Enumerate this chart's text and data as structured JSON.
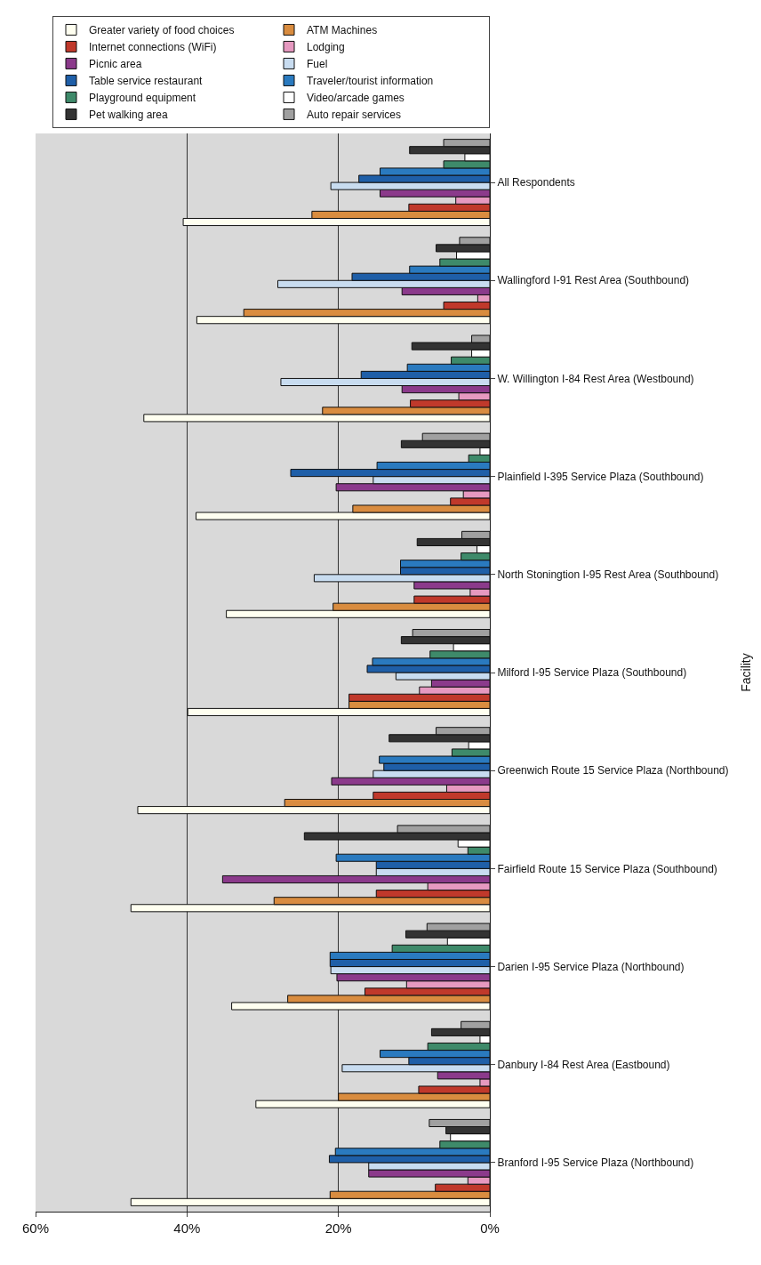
{
  "chart_data": {
    "type": "bar",
    "orientation": "horizontal",
    "ylabel": "Facility",
    "categories": [
      "All Respondents",
      "Wallingford I-91 Rest Area (Southbound)",
      "W. Willington I-84 Rest Area (Westbound)",
      "Plainfield I-395 Service Plaza (Southbound)",
      "North Stoningtion I-95 Rest Area (Southbound)",
      "Milford I-95 Service Plaza (Southbound)",
      "Greenwich Route 15 Service Plaza (Northbound)",
      "Fairfield Route 15 Service Plaza (Southbound)",
      "Darien I-95 Service Plaza (Northbound)",
      "Danbury I-84 Rest Area (Eastbound)",
      "Branford I-95 Service Plaza (Northbound)"
    ],
    "series": [
      {
        "name": "Greater variety of food choices",
        "color": "#fffff0",
        "values": [
          40.5,
          38.7,
          45.7,
          38.8,
          34.8,
          39.9,
          46.5,
          47.4,
          34.1,
          30.9,
          47.4
        ]
      },
      {
        "name": "ATM Machines",
        "color": "#d98c3f",
        "values": [
          23.5,
          32.5,
          22.1,
          18.1,
          20.7,
          18.6,
          27.1,
          28.5,
          26.7,
          20.0,
          21.1
        ]
      },
      {
        "name": "Internet connections (WiFi)",
        "color": "#c0392b",
        "values": [
          10.7,
          6.1,
          10.5,
          5.2,
          10.0,
          18.6,
          15.4,
          15.0,
          16.5,
          9.4,
          7.2
        ]
      },
      {
        "name": "Lodging",
        "color": "#e699c0",
        "values": [
          4.5,
          1.6,
          4.1,
          3.5,
          2.6,
          9.3,
          5.7,
          8.2,
          11.0,
          1.3,
          2.9
        ]
      },
      {
        "name": "Picnic area",
        "color": "#8b3a8b",
        "values": [
          14.5,
          11.6,
          11.6,
          20.3,
          10.0,
          7.7,
          20.9,
          35.3,
          20.2,
          6.9,
          16.0
        ]
      },
      {
        "name": "Fuel",
        "color": "#c8dcf0",
        "values": [
          21.0,
          28.0,
          27.6,
          15.4,
          23.2,
          12.4,
          15.4,
          15.0,
          21.0,
          19.5,
          16.0
        ]
      },
      {
        "name": "Table service restaurant",
        "color": "#1f5fa8",
        "values": [
          17.3,
          18.2,
          17.0,
          26.3,
          11.8,
          16.2,
          14.0,
          15.0,
          21.1,
          10.7,
          21.2
        ]
      },
      {
        "name": "Traveler/tourist information",
        "color": "#2a7abf",
        "values": [
          14.5,
          10.6,
          10.9,
          14.9,
          11.8,
          15.5,
          14.6,
          20.3,
          21.1,
          14.5,
          20.4
        ]
      },
      {
        "name": "Playground equipment",
        "color": "#3e8a6a",
        "values": [
          6.1,
          6.6,
          5.1,
          2.8,
          3.8,
          7.9,
          5.0,
          2.9,
          12.9,
          8.2,
          6.6
        ]
      },
      {
        "name": "Video/arcade games",
        "color": "#ffffff",
        "values": [
          3.3,
          4.4,
          2.4,
          1.3,
          1.7,
          4.8,
          2.8,
          4.2,
          5.6,
          1.3,
          5.2
        ]
      },
      {
        "name": "Pet walking area",
        "color": "#333333",
        "values": [
          10.6,
          7.1,
          10.3,
          11.7,
          9.6,
          11.7,
          13.3,
          24.5,
          11.1,
          7.7,
          5.8
        ]
      },
      {
        "name": "Auto repair services",
        "color": "#a0a0a0",
        "values": [
          6.1,
          4.0,
          2.4,
          8.9,
          3.7,
          10.2,
          7.1,
          12.2,
          8.3,
          3.8,
          8.0
        ]
      }
    ],
    "xlim": [
      60,
      0
    ],
    "xticks": [
      {
        "value": 0,
        "label": "0%"
      },
      {
        "value": 20,
        "label": "20%"
      },
      {
        "value": 40,
        "label": "40%"
      },
      {
        "value": 60,
        "label": "60%"
      }
    ],
    "grid": "x",
    "legend": "top right"
  }
}
